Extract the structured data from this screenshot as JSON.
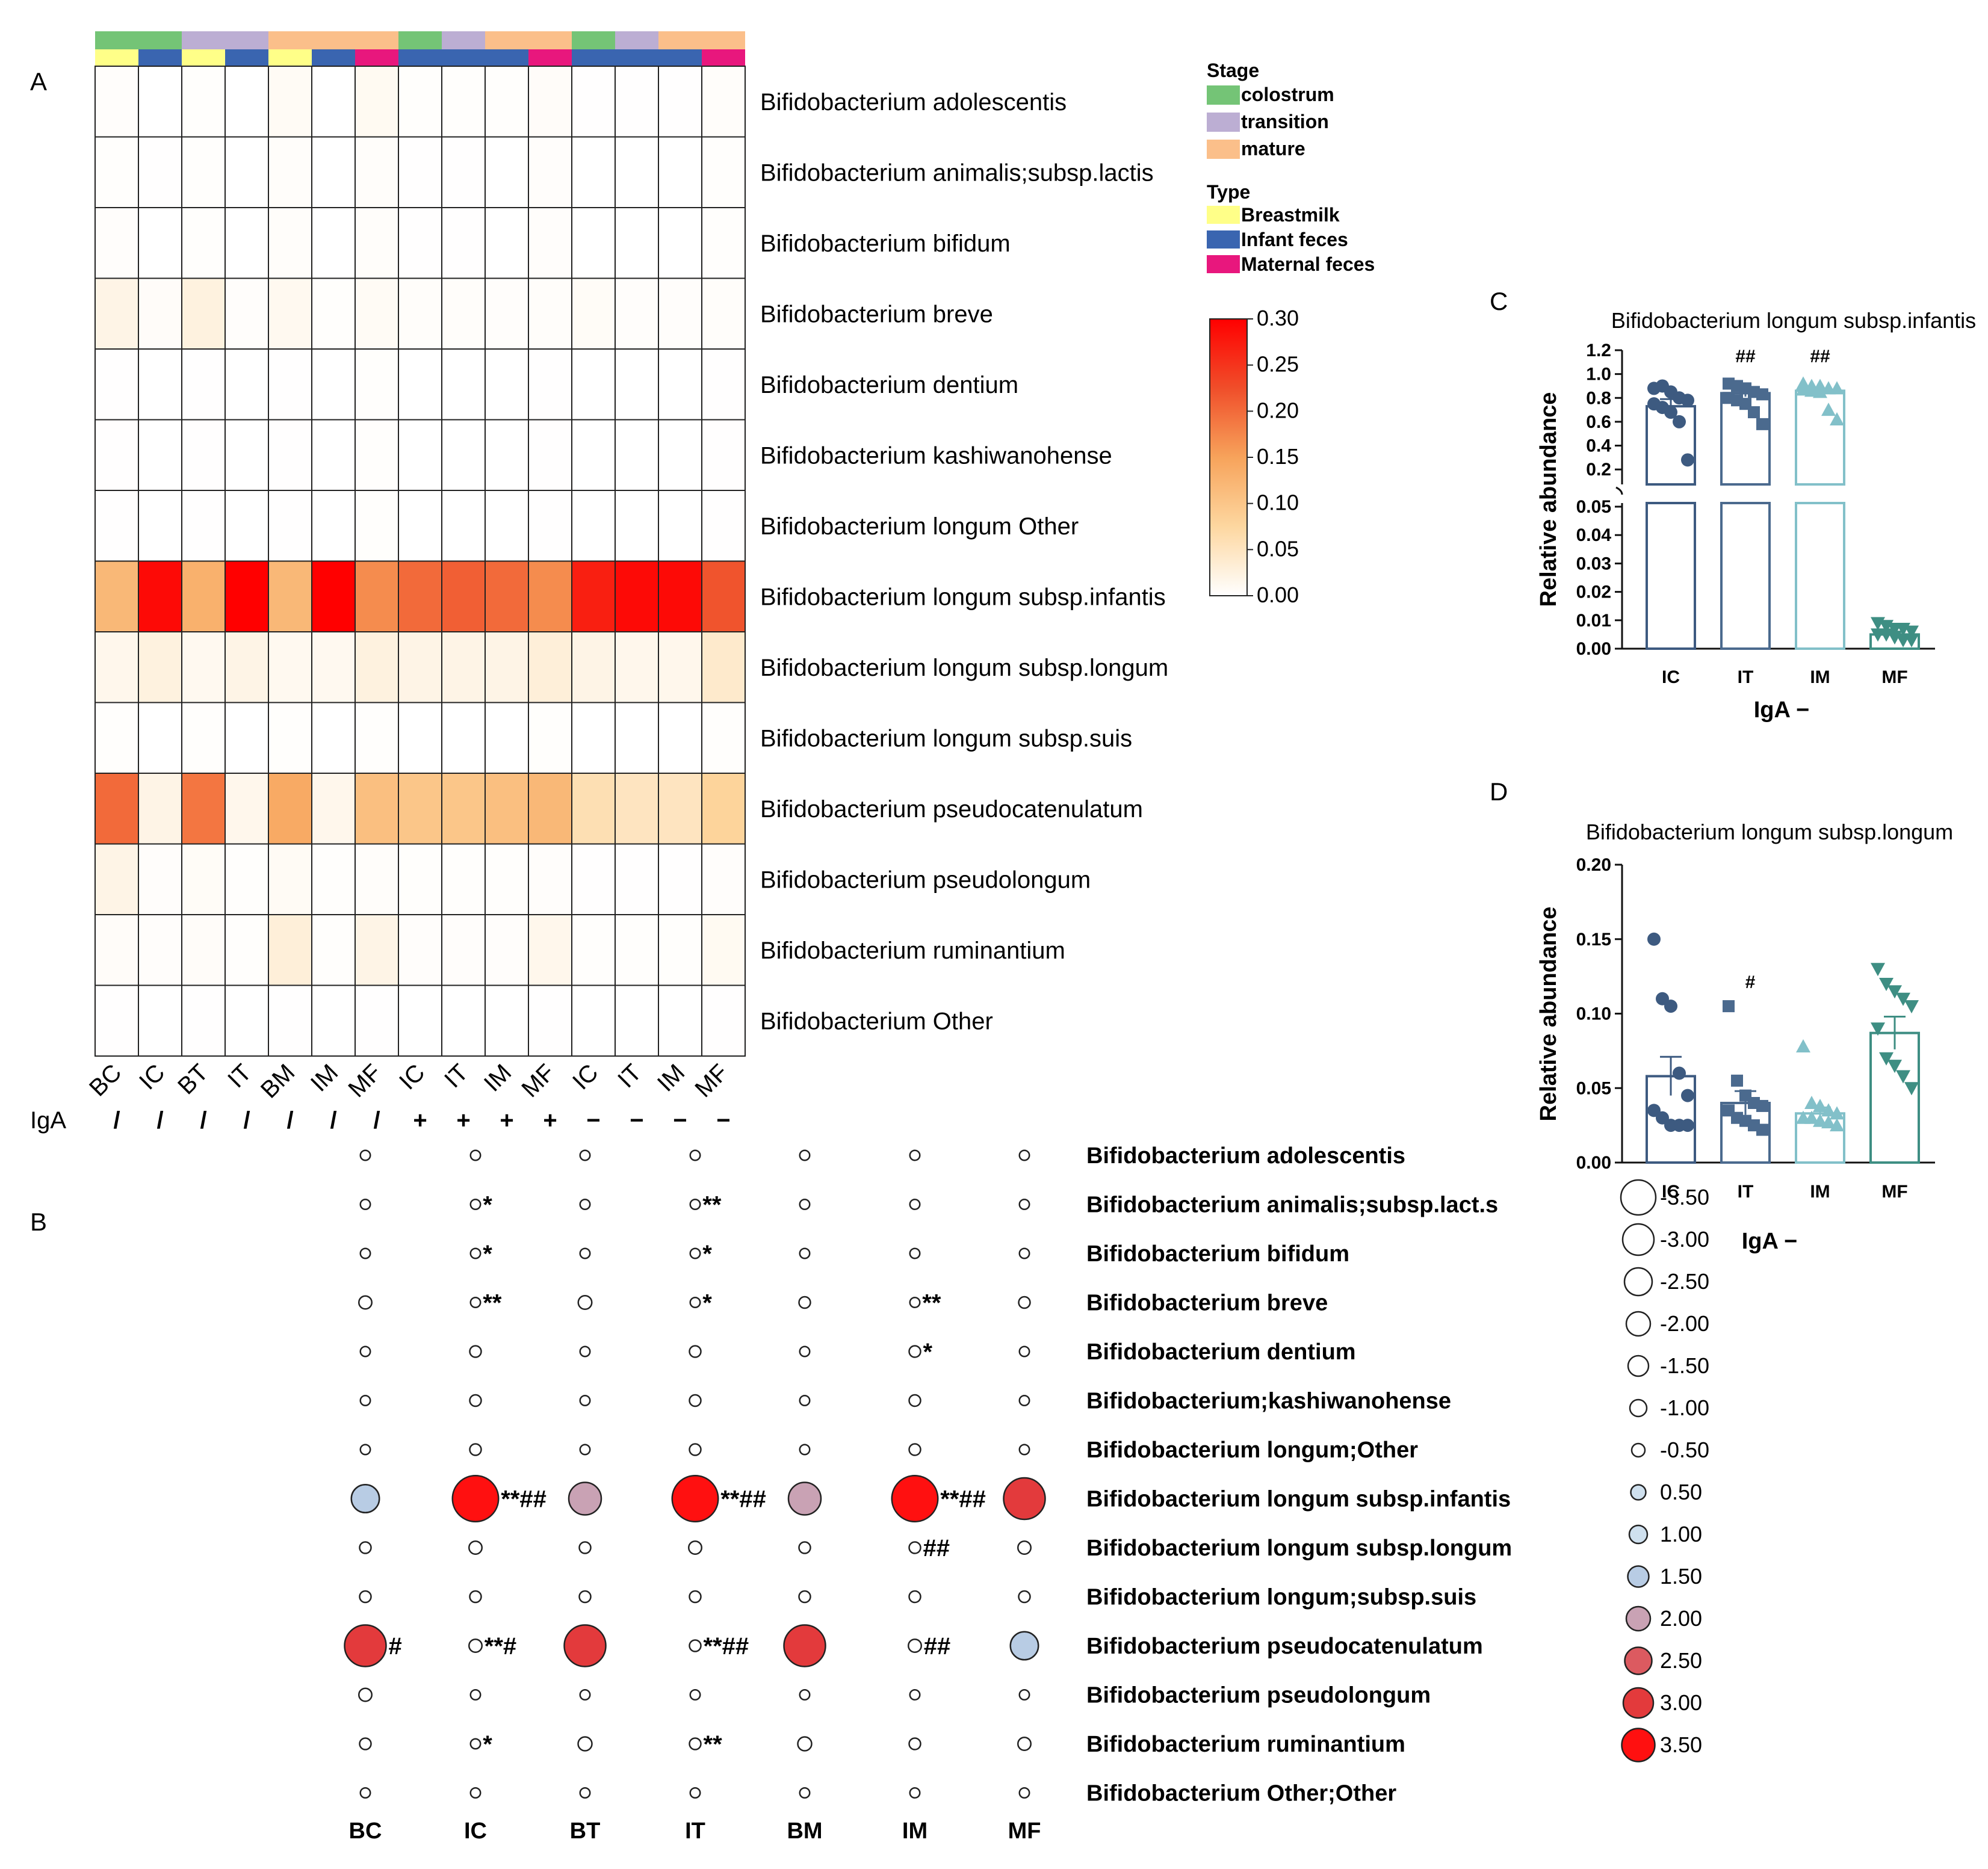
{
  "panel_labels": {
    "a": "A",
    "b": "B",
    "c": "C",
    "d": "D"
  },
  "chart_data": [
    {
      "panel": "A",
      "type": "heatmap",
      "columns": [
        "BC",
        "IC",
        "BT",
        "IT",
        "BM",
        "IM",
        "MF",
        "IC",
        "IT",
        "IM",
        "MF",
        "IC",
        "IT",
        "IM",
        "MF"
      ],
      "iga": [
        "/",
        "/",
        "/",
        "/",
        "/",
        "/",
        "/",
        "+",
        "+",
        "+",
        "+",
        "−",
        "−",
        "−",
        "−"
      ],
      "iga_label": "IgA",
      "stage_row": [
        "colostrum",
        "colostrum",
        "transition",
        "transition",
        "mature",
        "mature",
        "mature",
        "colostrum",
        "transition",
        "mature",
        "mature",
        "colostrum",
        "transition",
        "mature",
        "mature"
      ],
      "type_row": [
        "Breastmilk",
        "Infant feces",
        "Breastmilk",
        "Infant feces",
        "Breastmilk",
        "Infant feces",
        "Maternal feces",
        "Infant feces",
        "Infant feces",
        "Infant feces",
        "Maternal feces",
        "Infant feces",
        "Infant feces",
        "Infant feces",
        "Maternal feces"
      ],
      "rows": [
        "Bifidobacterium adolescentis",
        "Bifidobacterium animalis;subsp.lactis",
        "Bifidobacterium bifidum",
        "Bifidobacterium breve",
        "Bifidobacterium dentium",
        "Bifidobacterium kashiwanohense",
        "Bifidobacterium longum Other",
        "Bifidobacterium longum subsp.infantis",
        "Bifidobacterium longum subsp.longum",
        "Bifidobacterium longum subsp.suis",
        "Bifidobacterium pseudocatenulatum",
        "Bifidobacterium pseudolongum",
        "Bifidobacterium ruminantium",
        "Bifidobacterium Other"
      ],
      "values": [
        [
          0.003,
          0,
          0.002,
          0,
          0.008,
          0,
          0.01,
          0.002,
          0.002,
          0.002,
          0.005,
          0.001,
          0.001,
          0.001,
          0.004
        ],
        [
          0.002,
          0.001,
          0.002,
          0,
          0.004,
          0,
          0.004,
          0.001,
          0.001,
          0,
          0.003,
          0,
          0,
          0,
          0.002
        ],
        [
          0.003,
          0,
          0.002,
          0,
          0.004,
          0,
          0.004,
          0.001,
          0.001,
          0,
          0.003,
          0,
          0,
          0,
          0.002
        ],
        [
          0.02,
          0.005,
          0.025,
          0.003,
          0.012,
          0.002,
          0.008,
          0.004,
          0.004,
          0.003,
          0.004,
          0.006,
          0.003,
          0.003,
          0.004
        ],
        [
          0.001,
          0,
          0.001,
          0,
          0.001,
          0,
          0.002,
          0,
          0,
          0,
          0.001,
          0,
          0,
          0,
          0.001
        ],
        [
          0.001,
          0,
          0.001,
          0,
          0.001,
          0,
          0.002,
          0,
          0,
          0,
          0.001,
          0,
          0,
          0,
          0.001
        ],
        [
          0.001,
          0,
          0.001,
          0,
          0.001,
          0,
          0.002,
          0,
          0,
          0,
          0.001,
          0,
          0,
          0,
          0.001
        ],
        [
          0.12,
          0.29,
          0.13,
          0.3,
          0.12,
          0.3,
          0.17,
          0.2,
          0.21,
          0.2,
          0.17,
          0.27,
          0.29,
          0.29,
          0.22
        ],
        [
          0.015,
          0.025,
          0.012,
          0.02,
          0.012,
          0.012,
          0.025,
          0.02,
          0.02,
          0.02,
          0.03,
          0.02,
          0.015,
          0.015,
          0.04
        ],
        [
          0.002,
          0,
          0.002,
          0,
          0.002,
          0,
          0.002,
          0,
          0,
          0,
          0.002,
          0,
          0,
          0,
          0.002
        ],
        [
          0.2,
          0.02,
          0.19,
          0.015,
          0.14,
          0.015,
          0.11,
          0.1,
          0.1,
          0.11,
          0.12,
          0.06,
          0.05,
          0.05,
          0.08
        ],
        [
          0.02,
          0.003,
          0.006,
          0.002,
          0.008,
          0.002,
          0.004,
          0.002,
          0.002,
          0.002,
          0.003,
          0.001,
          0.001,
          0.001,
          0.003
        ],
        [
          0.005,
          0.003,
          0.005,
          0.002,
          0.03,
          0.002,
          0.02,
          0.003,
          0.003,
          0.003,
          0.015,
          0.002,
          0.002,
          0.002,
          0.01
        ],
        [
          0.001,
          0,
          0.001,
          0,
          0.001,
          0,
          0.001,
          0,
          0,
          0,
          0.001,
          0,
          0,
          0,
          0.001
        ]
      ],
      "color_scale": {
        "min": 0.0,
        "max": 0.3,
        "ticks": [
          "0.30",
          "0.25",
          "0.20",
          "0.15",
          "0.10",
          "0.05",
          "0.00"
        ],
        "colors": [
          "#ffffff",
          "#fdd7a0",
          "#f7a35b",
          "#f04e2a",
          "#ff0000"
        ]
      },
      "legend": {
        "stage_title": "Stage",
        "stage_items": [
          {
            "label": "colostrum",
            "color": "#74c476"
          },
          {
            "label": "transition",
            "color": "#bcaed3"
          },
          {
            "label": "mature",
            "color": "#fbbf8a"
          }
        ],
        "type_title": "Type",
        "type_items": [
          {
            "label": "Breastmilk",
            "color": "#ffff88"
          },
          {
            "label": "Infant feces",
            "color": "#3a65b0"
          },
          {
            "label": "Maternal feces",
            "color": "#e8177d"
          }
        ]
      }
    },
    {
      "panel": "B",
      "type": "scatter",
      "subtype": "bubble-matrix",
      "columns": [
        "BC",
        "IC",
        "BT",
        "IT",
        "BM",
        "IM",
        "MF"
      ],
      "rows": [
        "Bifidobacterium adolescentis",
        "Bifidobacterium animalis;subsp.lact.s",
        "Bifidobacterium bifidum",
        "Bifidobacterium breve",
        "Bifidobacterium dentium",
        "Bifidobacterium;kashiwanohense",
        "Bifidobacterium longum;Other",
        "Bifidobacterium longum subsp.infantis",
        "Bifidobacterium longum subsp.longum",
        "Bifidobacterium longum;subsp.suis",
        "Bifidobacterium pseudocatenulatum",
        "Bifidobacterium pseudolongum",
        "Bifidobacterium ruminantium",
        "Bifidobacterium Other;Other"
      ],
      "values": [
        [
          -1.5,
          -1.5,
          -1.5,
          -1.5,
          -1.5,
          -1.5,
          -1.5
        ],
        [
          -1.5,
          -1.5,
          -1.5,
          -1.5,
          -1.5,
          -1.5,
          -1.5
        ],
        [
          -1.5,
          -1.5,
          -1.5,
          -1.5,
          -1.5,
          -1.5,
          -1.5
        ],
        [
          -0.5,
          -1.5,
          -0.3,
          -1.5,
          -1.0,
          -1.5,
          -1.0
        ],
        [
          -1.5,
          -1.0,
          -1.5,
          -1.0,
          -1.5,
          -1.0,
          -1.5
        ],
        [
          -1.5,
          -1.0,
          -1.5,
          -1.0,
          -1.5,
          -1.0,
          -1.5
        ],
        [
          -1.5,
          -1.0,
          -1.5,
          -1.0,
          -1.5,
          -1.0,
          -1.5
        ],
        [
          1.5,
          3.5,
          2.0,
          3.5,
          2.0,
          3.5,
          3.0
        ],
        [
          -1.0,
          -0.5,
          -1.0,
          -0.5,
          -1.0,
          -1.0,
          -0.5
        ],
        [
          -1.0,
          -1.0,
          -1.0,
          -1.0,
          -1.0,
          -1.0,
          -1.0
        ],
        [
          3.0,
          -0.5,
          3.0,
          -1.0,
          3.0,
          -0.5,
          1.5
        ],
        [
          -0.5,
          -1.5,
          -1.5,
          -1.5,
          -1.5,
          -1.5,
          -1.5
        ],
        [
          -1.0,
          -1.5,
          -0.2,
          -1.0,
          -0.2,
          -1.0,
          -0.5
        ],
        [
          -1.5,
          -1.5,
          -1.5,
          -1.5,
          -1.5,
          -1.5,
          -1.5
        ]
      ],
      "annotations": [
        [
          "",
          "",
          "",
          "",
          "",
          "",
          ""
        ],
        [
          "",
          "*",
          "",
          "**",
          "",
          "",
          ""
        ],
        [
          "",
          "*",
          "",
          "*",
          "",
          "",
          ""
        ],
        [
          "",
          "**",
          "",
          "*",
          "",
          "**",
          ""
        ],
        [
          "",
          "",
          "",
          "",
          "",
          "*",
          ""
        ],
        [
          "",
          "",
          "",
          "",
          "",
          "",
          ""
        ],
        [
          "",
          "",
          "",
          "",
          "",
          "",
          ""
        ],
        [
          "",
          "**##",
          "",
          "**##",
          "",
          "**##",
          ""
        ],
        [
          "",
          "",
          "",
          "",
          "",
          "##",
          ""
        ],
        [
          "",
          "",
          "",
          "",
          "",
          "",
          ""
        ],
        [
          "#",
          "**#",
          "",
          "**##",
          "",
          "##",
          ""
        ],
        [
          "",
          "",
          "",
          "",
          "",
          "",
          ""
        ],
        [
          "",
          "*",
          "",
          "**",
          "",
          "",
          ""
        ],
        [
          "",
          "",
          "",
          "",
          "",
          "",
          ""
        ]
      ],
      "size_legend": [
        "-3.50",
        "-3.00",
        "-2.50",
        "-2.00",
        "-1.50",
        "-1.00",
        "-0.50",
        "0.50",
        "1.00",
        "1.50",
        "2.00",
        "2.50",
        "3.00",
        "3.50"
      ],
      "size_legend_values": [
        -3.5,
        -3.0,
        -2.5,
        -2.0,
        -1.5,
        -1.0,
        -0.5,
        0.5,
        1.0,
        1.5,
        2.0,
        2.5,
        3.0,
        3.5
      ]
    },
    {
      "panel": "C",
      "type": "bar",
      "title": "Bifidobacterium longum subsp.infantis",
      "categories": [
        "IC",
        "IT",
        "IM",
        "MF"
      ],
      "values": [
        0.73,
        0.84,
        0.86,
        0.005
      ],
      "sem": [
        0.06,
        0.03,
        0.02,
        0.001
      ],
      "xlabel": "IgA −",
      "ylabel": "Relative abundance",
      "ylim_lower": [
        0,
        0.05
      ],
      "ylim_upper": [
        0.1,
        1.2
      ],
      "yticks_lower": [
        "0.00",
        "0.01",
        "0.02",
        "0.03",
        "0.04",
        "0.05"
      ],
      "yticks_upper": [
        "0.2",
        "0.4",
        "0.6",
        "0.8",
        "1.0",
        "1.2"
      ],
      "annotations": [
        "",
        "##",
        "##",
        ""
      ],
      "points": [
        [
          0.88,
          0.9,
          0.85,
          0.8,
          0.78,
          0.75,
          0.72,
          0.68,
          0.6,
          0.28
        ],
        [
          0.92,
          0.9,
          0.88,
          0.85,
          0.83,
          0.8,
          0.78,
          0.75,
          0.68,
          0.58
        ],
        [
          0.92,
          0.9,
          0.9,
          0.88,
          0.88,
          0.87,
          0.86,
          0.85,
          0.7,
          0.62
        ],
        [
          0.009,
          0.008,
          0.007,
          0.007,
          0.006,
          0.005,
          0.005,
          0.004,
          0.003,
          0.003
        ]
      ]
    },
    {
      "panel": "D",
      "type": "bar",
      "title": "Bifidobacterium longum subsp.longum",
      "categories": [
        "IC",
        "IT",
        "IM",
        "MF"
      ],
      "values": [
        0.058,
        0.04,
        0.033,
        0.087
      ],
      "sem": [
        0.013,
        0.008,
        0.004,
        0.011
      ],
      "xlabel": "IgA −",
      "ylabel": "Relative abundance",
      "ylim": [
        0,
        0.2
      ],
      "yticks": [
        "0.00",
        "0.05",
        "0.10",
        "0.15",
        "0.20"
      ],
      "annotations": [
        "",
        "#",
        "",
        ""
      ],
      "points": [
        [
          0.15,
          0.11,
          0.105,
          0.06,
          0.045,
          0.035,
          0.03,
          0.025,
          0.025,
          0.025
        ],
        [
          0.105,
          0.055,
          0.045,
          0.04,
          0.038,
          0.035,
          0.03,
          0.028,
          0.025,
          0.022
        ],
        [
          0.078,
          0.04,
          0.038,
          0.035,
          0.033,
          0.03,
          0.03,
          0.028,
          0.027,
          0.025
        ],
        [
          0.13,
          0.12,
          0.115,
          0.11,
          0.105,
          0.09,
          0.07,
          0.065,
          0.058,
          0.05
        ]
      ]
    }
  ]
}
